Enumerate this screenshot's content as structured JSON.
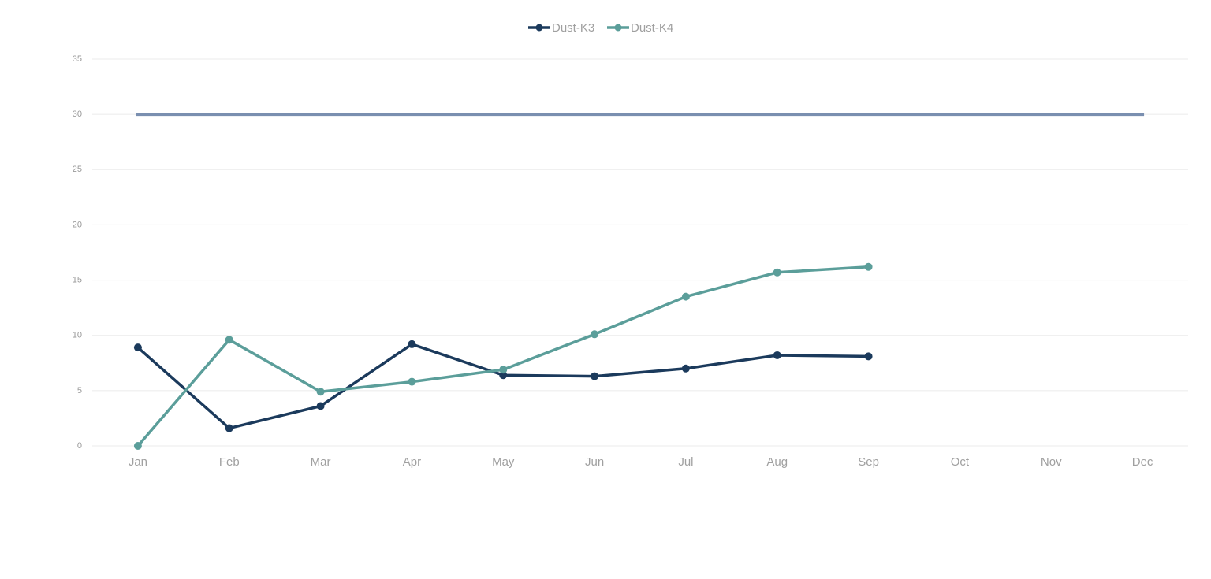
{
  "chart_data": {
    "type": "line",
    "categories": [
      "Jan",
      "Feb",
      "Mar",
      "Apr",
      "May",
      "Jun",
      "Jul",
      "Aug",
      "Sep",
      "Oct",
      "Nov",
      "Dec"
    ],
    "series": [
      {
        "name": "Dust-K3",
        "color": "#1b3a5c",
        "values": [
          8.9,
          1.6,
          3.6,
          9.2,
          6.4,
          6.3,
          7.0,
          8.2,
          8.1,
          null,
          null,
          null
        ]
      },
      {
        "name": "Dust-K4",
        "color": "#5b9e9a",
        "values": [
          0,
          9.6,
          4.9,
          5.8,
          6.9,
          10.1,
          13.5,
          15.7,
          16.2,
          null,
          null,
          null
        ]
      }
    ],
    "threshold": {
      "value": 30,
      "color": "#7a8fb0"
    },
    "ylim": [
      0,
      35
    ],
    "yticks": [
      0,
      5,
      10,
      15,
      20,
      25,
      30,
      35
    ],
    "grid": true,
    "legend": "top"
  }
}
